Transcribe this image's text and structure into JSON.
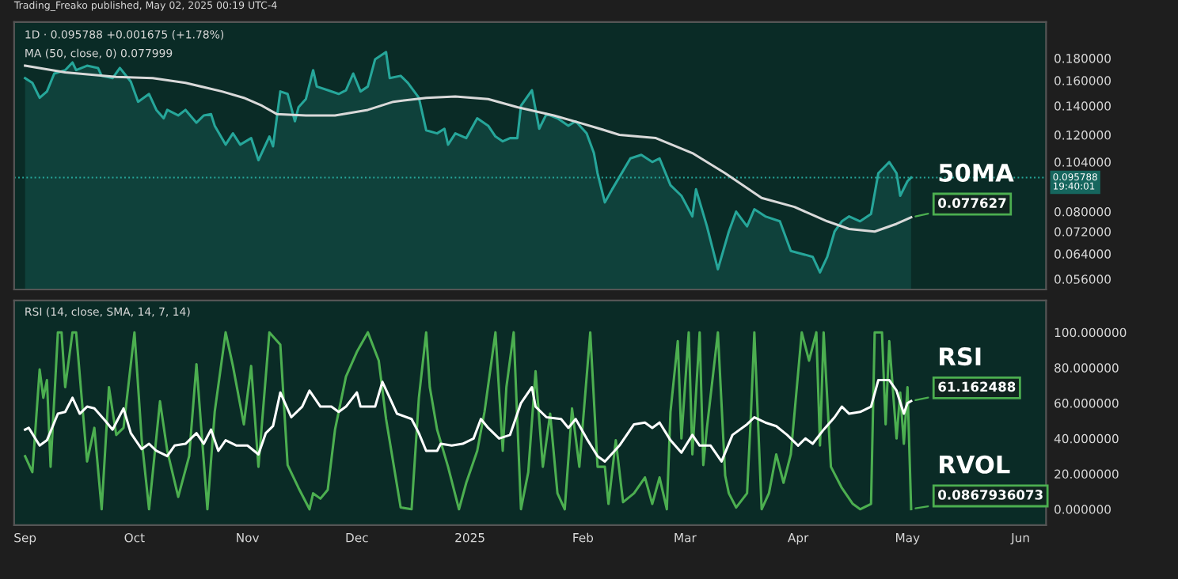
{
  "chart_data": [
    {
      "type": "line",
      "title": "1D · 0.095788 +0.001675 (+1.78%)",
      "subtitle": "MA (50, close, 0) 0.077999",
      "log": true,
      "xlim": [
        "2024-08-29",
        "2025-06-08"
      ],
      "ylim": [
        0.053,
        0.218
      ],
      "yticks": [
        {
          "value": 0.18,
          "label": "0.180000"
        },
        {
          "value": 0.16,
          "label": "0.160000"
        },
        {
          "value": 0.14,
          "label": "0.140000"
        },
        {
          "value": 0.12,
          "label": "0.120000"
        },
        {
          "value": 0.104,
          "label": "0.104000"
        },
        {
          "value": 0.08,
          "label": "0.080000"
        },
        {
          "value": 0.072,
          "label": "0.072000"
        },
        {
          "value": 0.064,
          "label": "0.064000"
        },
        {
          "value": 0.056,
          "label": "0.056000"
        }
      ],
      "tick_labels": "y",
      "grid": false,
      "legend": false,
      "ref_lines": [
        {
          "axis": "y",
          "value": 0.095788,
          "label": "0.095788\n19:40:01",
          "color": "#26a69a",
          "line_style": "dotted"
        }
      ],
      "annotations": [
        "Trading_Freako published, May 02, 2025 00:19 UTC-4",
        {
          "text": "0.077627",
          "x": "2025-05-02",
          "y": 0.077627
        }
      ],
      "series": [
        {
          "type": "area",
          "color": "#26a69a",
          "x": [
            "2024-09-01",
            "2024-09-03",
            "2024-09-05",
            "2024-09-07",
            "2024-09-09",
            "2024-09-12",
            "2024-09-14",
            "2024-09-15",
            "2024-09-18",
            "2024-09-21",
            "2024-09-22",
            "2024-09-25",
            "2024-09-27",
            "2024-09-30",
            "2024-10-02",
            "2024-10-05",
            "2024-10-07",
            "2024-10-09",
            "2024-10-10",
            "2024-10-13",
            "2024-10-15",
            "2024-10-18",
            "2024-10-20",
            "2024-10-22",
            "2024-10-23",
            "2024-10-26",
            "2024-10-28",
            "2024-10-30",
            "2024-11-02",
            "2024-11-04",
            "2024-11-07",
            "2024-11-08",
            "2024-11-10",
            "2024-11-12",
            "2024-11-14",
            "2024-11-15",
            "2024-11-17",
            "2024-11-19",
            "2024-11-20",
            "2024-11-23",
            "2024-11-26",
            "2024-11-28",
            "2024-11-30",
            "2024-12-02",
            "2024-12-04",
            "2024-12-06",
            "2024-12-09",
            "2024-12-10",
            "2024-12-13",
            "2024-12-15",
            "2024-12-18",
            "2024-12-20",
            "2024-12-23",
            "2024-12-25",
            "2024-12-26",
            "2024-12-28",
            "2024-12-31",
            "2025-01-03",
            "2025-01-06",
            "2025-01-08",
            "2025-01-10",
            "2025-01-12",
            "2025-01-14",
            "2025-01-15",
            "2025-01-18",
            "2025-01-20",
            "2025-01-22",
            "2025-01-25",
            "2025-01-28",
            "2025-01-30",
            "2025-02-02",
            "2025-02-04",
            "2025-02-05",
            "2025-02-07",
            "2025-02-09",
            "2025-02-14",
            "2025-02-17",
            "2025-02-20",
            "2025-02-22",
            "2025-02-25",
            "2025-02-28",
            "2025-03-03",
            "2025-03-04",
            "2025-03-07",
            "2025-03-10",
            "2025-03-13",
            "2025-03-15",
            "2025-03-18",
            "2025-03-20",
            "2025-03-23",
            "2025-03-27",
            "2025-03-30",
            "2025-04-02",
            "2025-04-05",
            "2025-04-07",
            "2025-04-09",
            "2025-04-11",
            "2025-04-13",
            "2025-04-15",
            "2025-04-18",
            "2025-04-21",
            "2025-04-23",
            "2025-04-26",
            "2025-04-28",
            "2025-04-29",
            "2025-05-01",
            "2025-05-02"
          ],
          "values": [
            0.162,
            0.158,
            0.146,
            0.151,
            0.166,
            0.169,
            0.176,
            0.169,
            0.173,
            0.171,
            0.164,
            0.162,
            0.171,
            0.159,
            0.143,
            0.149,
            0.137,
            0.131,
            0.137,
            0.133,
            0.137,
            0.128,
            0.133,
            0.134,
            0.126,
            0.114,
            0.121,
            0.114,
            0.118,
            0.105,
            0.119,
            0.113,
            0.151,
            0.149,
            0.129,
            0.139,
            0.145,
            0.169,
            0.155,
            0.152,
            0.149,
            0.152,
            0.166,
            0.151,
            0.155,
            0.179,
            0.186,
            0.162,
            0.164,
            0.158,
            0.146,
            0.123,
            0.121,
            0.124,
            0.114,
            0.121,
            0.118,
            0.131,
            0.126,
            0.119,
            0.116,
            0.118,
            0.118,
            0.14,
            0.152,
            0.124,
            0.134,
            0.131,
            0.126,
            0.129,
            0.121,
            0.109,
            0.098,
            0.084,
            0.09,
            0.106,
            0.108,
            0.104,
            0.106,
            0.092,
            0.087,
            0.078,
            0.09,
            0.074,
            0.059,
            0.072,
            0.08,
            0.074,
            0.081,
            0.078,
            0.076,
            0.065,
            0.064,
            0.063,
            0.058,
            0.063,
            0.072,
            0.076,
            0.078,
            0.076,
            0.079,
            0.098,
            0.104,
            0.098,
            0.087,
            0.094,
            0.095788
          ]
        },
        {
          "type": "line",
          "name": "50MA",
          "color": "#d9d9d9",
          "x": [
            "2024-09-01",
            "2024-09-12",
            "2024-09-26",
            "2024-10-06",
            "2024-10-15",
            "2024-10-25",
            "2024-10-31",
            "2024-11-05",
            "2024-11-09",
            "2024-11-17",
            "2024-11-25",
            "2024-12-04",
            "2024-12-11",
            "2024-12-20",
            "2024-12-28",
            "2025-01-06",
            "2025-01-14",
            "2025-01-24",
            "2025-01-31",
            "2025-02-07",
            "2025-02-11",
            "2025-02-21",
            "2025-03-03",
            "2025-03-12",
            "2025-03-22",
            "2025-03-31",
            "2025-04-09",
            "2025-04-15",
            "2025-04-22",
            "2025-04-28",
            "2025-05-02"
          ],
          "values": [
            0.173,
            0.167,
            0.163,
            0.162,
            0.158,
            0.151,
            0.146,
            0.14,
            0.134,
            0.133,
            0.133,
            0.137,
            0.143,
            0.146,
            0.147,
            0.145,
            0.139,
            0.133,
            0.128,
            0.123,
            0.12,
            0.118,
            0.109,
            0.098,
            0.086,
            0.082,
            0.076,
            0.073,
            0.072,
            0.075,
            0.077627
          ]
        }
      ]
    },
    {
      "type": "line",
      "title": "RSI (14, close, SMA, 14, 7, 14)",
      "xlim": [
        "2024-08-29",
        "2025-06-08"
      ],
      "ylim": [
        -9,
        118
      ],
      "xticks": [
        {
          "value": "2024-09-01",
          "label": "Sep"
        },
        {
          "value": "2024-10-01",
          "label": "Oct"
        },
        {
          "value": "2024-11-01",
          "label": "Nov"
        },
        {
          "value": "2024-12-01",
          "label": "Dec"
        },
        {
          "value": "2025-01-01",
          "label": "2025"
        },
        {
          "value": "2025-02-01",
          "label": "Feb"
        },
        {
          "value": "2025-03-01",
          "label": "Mar"
        },
        {
          "value": "2025-04-01",
          "label": "Apr"
        },
        {
          "value": "2025-05-01",
          "label": "May"
        },
        {
          "value": "2025-06-01",
          "label": "Jun"
        }
      ],
      "yticks": [
        {
          "value": 0,
          "label": "0.000000"
        },
        {
          "value": 20,
          "label": "20.000000"
        },
        {
          "value": 40,
          "label": "40.000000"
        },
        {
          "value": 60,
          "label": "60.000000"
        },
        {
          "value": 80,
          "label": "80.000000"
        },
        {
          "value": 100,
          "label": "100.000000"
        }
      ],
      "grid": false,
      "legend": false,
      "annotations": [
        {
          "text": "61.162488",
          "x": "2025-05-02",
          "y": 61.162488
        },
        {
          "text": "0.0867936073",
          "x": "2025-05-02",
          "y": 0.0867936073
        }
      ],
      "series": [
        {
          "type": "line",
          "name": "RVOL",
          "color": "#4caf50",
          "x": [
            "2024-09-01",
            "2024-09-03",
            "2024-09-05",
            "2024-09-06",
            "2024-09-07",
            "2024-09-08",
            "2024-09-10",
            "2024-09-11",
            "2024-09-12",
            "2024-09-14",
            "2024-09-15",
            "2024-09-18",
            "2024-09-20",
            "2024-09-22",
            "2024-09-24",
            "2024-09-26",
            "2024-09-28",
            "2024-10-01",
            "2024-10-03",
            "2024-10-05",
            "2024-10-08",
            "2024-10-10",
            "2024-10-13",
            "2024-10-16",
            "2024-10-18",
            "2024-10-21",
            "2024-10-23",
            "2024-10-26",
            "2024-10-28",
            "2024-10-31",
            "2024-11-02",
            "2024-11-04",
            "2024-11-07",
            "2024-11-10",
            "2024-11-12",
            "2024-11-15",
            "2024-11-18",
            "2024-11-19",
            "2024-11-21",
            "2024-11-23",
            "2024-11-25",
            "2024-11-28",
            "2024-12-01",
            "2024-12-04",
            "2024-12-07",
            "2024-12-09",
            "2024-12-13",
            "2024-12-16",
            "2024-12-18",
            "2024-12-20",
            "2024-12-21",
            "2024-12-23",
            "2024-12-26",
            "2024-12-29",
            "2024-12-31",
            "2025-01-03",
            "2025-01-05",
            "2025-01-08",
            "2025-01-10",
            "2025-01-11",
            "2025-01-13",
            "2025-01-15",
            "2025-01-17",
            "2025-01-19",
            "2025-01-21",
            "2025-01-23",
            "2025-01-25",
            "2025-01-27",
            "2025-01-29",
            "2025-01-31",
            "2025-02-03",
            "2025-02-05",
            "2025-02-07",
            "2025-02-08",
            "2025-02-10",
            "2025-02-12",
            "2025-02-15",
            "2025-02-18",
            "2025-02-20",
            "2025-02-22",
            "2025-02-24",
            "2025-02-25",
            "2025-02-27",
            "2025-02-28",
            "2025-03-02",
            "2025-03-03",
            "2025-03-05",
            "2025-03-06",
            "2025-03-07",
            "2025-03-10",
            "2025-03-12",
            "2025-03-13",
            "2025-03-15",
            "2025-03-18",
            "2025-03-19",
            "2025-03-20",
            "2025-03-22",
            "2025-03-24",
            "2025-03-26",
            "2025-03-28",
            "2025-03-30",
            "2025-04-02",
            "2025-04-04",
            "2025-04-06",
            "2025-04-07",
            "2025-04-08",
            "2025-04-10",
            "2025-04-13",
            "2025-04-16",
            "2025-04-18",
            "2025-04-21",
            "2025-04-22",
            "2025-04-24",
            "2025-04-25",
            "2025-04-26",
            "2025-04-28",
            "2025-04-29",
            "2025-04-30",
            "2025-05-01",
            "2025-05-02"
          ],
          "values": [
            30,
            21,
            79,
            63,
            73,
            24,
            100,
            100,
            69,
            100,
            100,
            27,
            46,
            0,
            69,
            42,
            46,
            100,
            39,
            0,
            61,
            33,
            7,
            30,
            82,
            0,
            55,
            100,
            81,
            48,
            81,
            24,
            100,
            93,
            25,
            12,
            0,
            9,
            6,
            11,
            45,
            75,
            89,
            100,
            84,
            51,
            1,
            0,
            63,
            100,
            69,
            45,
            24,
            0,
            15,
            33,
            55,
            100,
            33,
            69,
            100,
            0,
            21,
            78,
            24,
            54,
            9,
            0,
            57,
            24,
            100,
            24,
            24,
            3,
            39,
            4,
            9,
            18,
            3,
            18,
            0,
            55,
            95,
            40,
            100,
            31,
            100,
            25,
            46,
            100,
            19,
            9,
            1,
            9,
            51,
            100,
            0,
            9,
            31,
            15,
            31,
            100,
            84,
            100,
            36,
            100,
            24,
            12,
            3,
            0,
            3,
            100,
            100,
            48,
            95,
            40,
            66,
            37,
            69,
            0.0867936073
          ]
        },
        {
          "type": "line",
          "name": "RSI",
          "color": "#ffffff",
          "x": [
            "2024-09-01",
            "2024-09-02",
            "2024-09-05",
            "2024-09-07",
            "2024-09-10",
            "2024-09-12",
            "2024-09-14",
            "2024-09-16",
            "2024-09-18",
            "2024-09-20",
            "2024-09-23",
            "2024-09-25",
            "2024-09-26",
            "2024-09-28",
            "2024-09-30",
            "2024-10-03",
            "2024-10-05",
            "2024-10-07",
            "2024-10-10",
            "2024-10-12",
            "2024-10-15",
            "2024-10-18",
            "2024-10-20",
            "2024-10-22",
            "2024-10-24",
            "2024-10-26",
            "2024-10-29",
            "2024-11-01",
            "2024-11-04",
            "2024-11-06",
            "2024-11-08",
            "2024-11-10",
            "2024-11-13",
            "2024-11-16",
            "2024-11-18",
            "2024-11-21",
            "2024-11-24",
            "2024-11-26",
            "2024-11-28",
            "2024-12-01",
            "2024-12-02",
            "2024-12-06",
            "2024-12-08",
            "2024-12-10",
            "2024-12-12",
            "2024-12-16",
            "2024-12-18",
            "2024-12-20",
            "2024-12-23",
            "2024-12-24",
            "2024-12-27",
            "2024-12-30",
            "2025-01-02",
            "2025-01-04",
            "2025-01-06",
            "2025-01-09",
            "2025-01-12",
            "2025-01-15",
            "2025-01-18",
            "2025-01-19",
            "2025-01-22",
            "2025-01-26",
            "2025-01-28",
            "2025-01-30",
            "2025-02-02",
            "2025-02-05",
            "2025-02-07",
            "2025-02-11",
            "2025-02-15",
            "2025-02-18",
            "2025-02-20",
            "2025-02-22",
            "2025-02-25",
            "2025-02-28",
            "2025-03-03",
            "2025-03-05",
            "2025-03-08",
            "2025-03-11",
            "2025-03-14",
            "2025-03-18",
            "2025-03-20",
            "2025-03-23",
            "2025-03-26",
            "2025-03-29",
            "2025-04-01",
            "2025-04-03",
            "2025-04-05",
            "2025-04-08",
            "2025-04-11",
            "2025-04-13",
            "2025-04-15",
            "2025-04-18",
            "2025-04-21",
            "2025-04-23",
            "2025-04-26",
            "2025-04-28",
            "2025-04-30",
            "2025-05-01",
            "2025-05-02"
          ],
          "values": [
            45,
            46,
            36,
            39,
            54,
            55,
            63,
            54,
            58,
            57,
            50,
            45,
            49,
            57,
            43,
            34,
            37,
            33,
            30,
            36,
            37,
            43,
            37,
            45,
            33,
            39,
            36,
            36,
            31,
            43,
            47,
            66,
            52,
            58,
            67,
            58,
            58,
            55,
            58,
            66,
            58,
            58,
            72,
            63,
            54,
            51,
            43,
            33,
            33,
            37,
            36,
            37,
            40,
            51,
            46,
            40,
            42,
            60,
            69,
            58,
            52,
            51,
            46,
            51,
            40,
            30,
            27,
            36,
            48,
            49,
            46,
            49,
            39,
            32,
            42,
            36,
            36,
            27,
            42,
            48,
            52,
            49,
            47,
            42,
            36,
            40,
            37,
            45,
            52,
            58,
            54,
            55,
            58,
            73,
            73,
            67,
            54,
            60,
            61.162488
          ]
        }
      ]
    }
  ]
}
